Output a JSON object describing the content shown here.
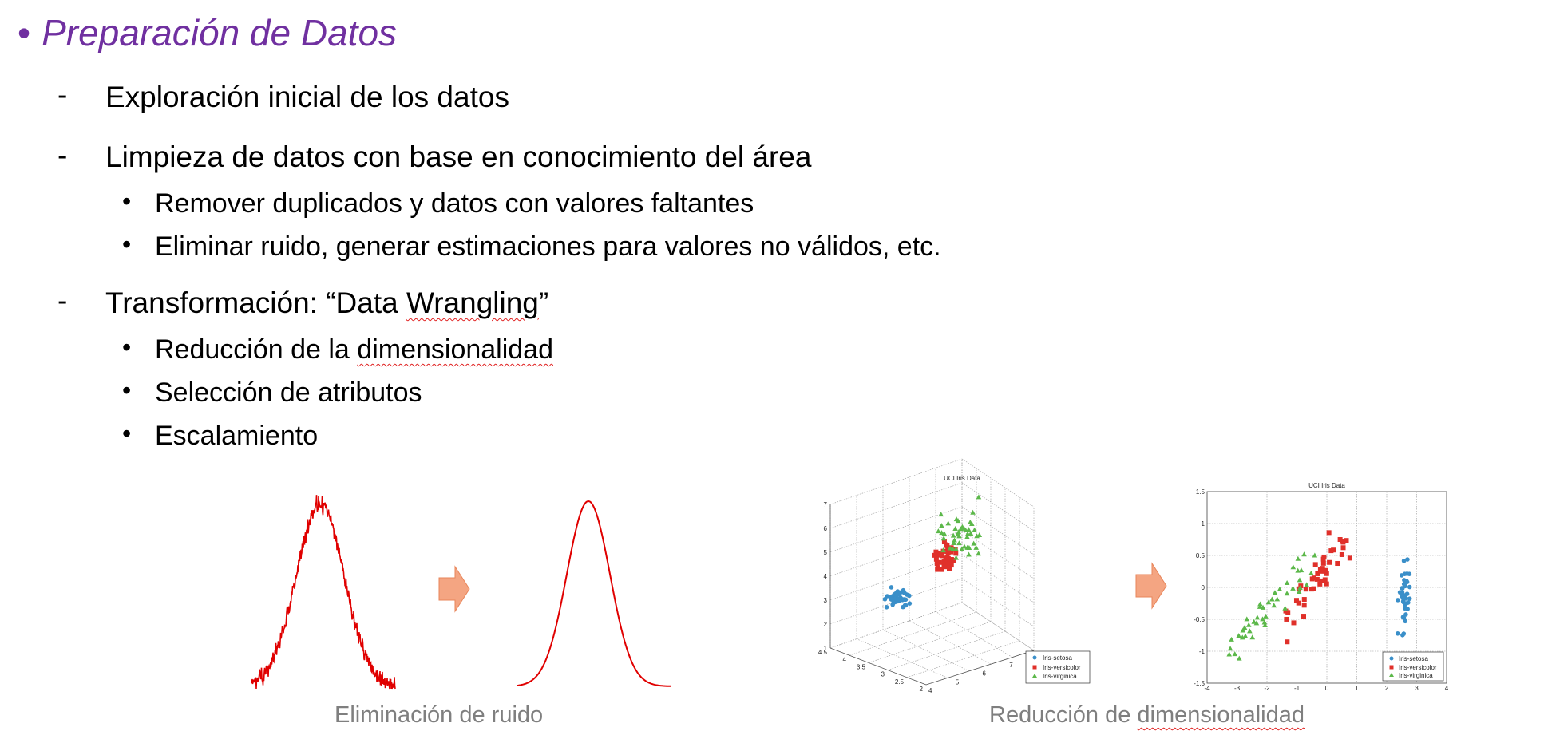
{
  "slide": {
    "title": "Preparación de Datos",
    "title_bullet": "•",
    "dash": "-",
    "bullet": "•",
    "items": [
      {
        "text": "Exploración inicial de los datos"
      },
      {
        "text": "Limpieza de datos con base en conocimiento del área",
        "subitems": [
          "Remover duplicados y datos con valores faltantes",
          "Eliminar ruido, generar estimaciones para valores no válidos, etc."
        ]
      },
      {
        "text_pre": "Transformación: “Data ",
        "text_squig": "Wrangling",
        "text_post": "”",
        "subitems": [
          {
            "pre": "Reducción de la ",
            "squig": "dimensionalidad"
          },
          {
            "pre": "Selección de atributos",
            "squig": ""
          },
          {
            "pre": "Escalamiento",
            "squig": ""
          }
        ]
      }
    ],
    "accent_color": "#7030a0",
    "arrow_color": "#f4a582"
  },
  "figures": {
    "noise_caption": "Eliminación de ruido",
    "dimred_caption_pre": "Reducción de ",
    "dimred_caption_squig": "dimensionalidad",
    "signal_color": "#e00000",
    "plot3d": {
      "title": "UCI Iris Data",
      "z_ticks": [
        "7",
        "6",
        "5",
        "4",
        "3",
        "2",
        "1"
      ],
      "y_ticks": [
        "4.5",
        "4",
        "3.5",
        "3",
        "2.5",
        "2"
      ],
      "x_ticks": [
        "4",
        "5",
        "6",
        "7",
        "8"
      ],
      "legend": [
        "Iris-setosa",
        "Iris-versicolor",
        "Iris-virginica"
      ]
    },
    "plot2d": {
      "title": "UCI Iris Data",
      "y_ticks": [
        "1.5",
        "1",
        "0.5",
        "0",
        "-0.5",
        "-1",
        "-1.5"
      ],
      "x_ticks": [
        "-4",
        "-3",
        "-2",
        "-1",
        "0",
        "1",
        "2",
        "3",
        "4"
      ],
      "legend": [
        "Iris-setosa",
        "Iris-versicolor",
        "Iris-virginica"
      ]
    },
    "class_colors": [
      "#3a8fc9",
      "#e0302a",
      "#5cb84a"
    ]
  }
}
